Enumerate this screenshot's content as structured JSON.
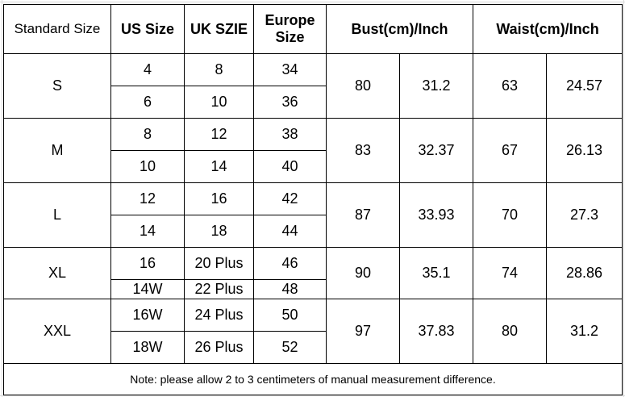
{
  "headers": {
    "standard_size": "Standard Size",
    "us_size": "US Size",
    "uk_size": "UK SZIE",
    "europe_line1": "Europe",
    "europe_line2": "Size",
    "bust": "Bust(cm)/Inch",
    "waist": "Waist(cm)/Inch"
  },
  "groups": [
    {
      "standard": "S",
      "bust_cm": "80",
      "bust_in": "31.2",
      "waist_cm": "63",
      "waist_in": "24.57",
      "rows": [
        {
          "us": "4",
          "uk": "8",
          "eu": "34"
        },
        {
          "us": "6",
          "uk": "10",
          "eu": "36"
        }
      ]
    },
    {
      "standard": "M",
      "bust_cm": "83",
      "bust_in": "32.37",
      "waist_cm": "67",
      "waist_in": "26.13",
      "rows": [
        {
          "us": "8",
          "uk": "12",
          "eu": "38"
        },
        {
          "us": "10",
          "uk": "14",
          "eu": "40"
        }
      ]
    },
    {
      "standard": "L",
      "bust_cm": "87",
      "bust_in": "33.93",
      "waist_cm": "70",
      "waist_in": "27.3",
      "rows": [
        {
          "us": "12",
          "uk": "16",
          "eu": "42"
        },
        {
          "us": "14",
          "uk": "18",
          "eu": "44"
        }
      ]
    },
    {
      "standard": "XL",
      "bust_cm": "90",
      "bust_in": "35.1",
      "waist_cm": "74",
      "waist_in": "28.86",
      "rows": [
        {
          "us": "16",
          "uk": "20 Plus",
          "eu": "46"
        },
        {
          "us": "14W",
          "uk": "22 Plus",
          "eu": "48"
        }
      ]
    },
    {
      "standard": "XXL",
      "bust_cm": "97",
      "bust_in": "37.83",
      "waist_cm": "80",
      "waist_in": "31.2",
      "rows": [
        {
          "us": "16W",
          "uk": "24 Plus",
          "eu": "50"
        },
        {
          "us": "18W",
          "uk": "26 Plus",
          "eu": "52"
        }
      ]
    }
  ],
  "note": "Note: please allow 2 to 3 centimeters of manual measurement difference."
}
